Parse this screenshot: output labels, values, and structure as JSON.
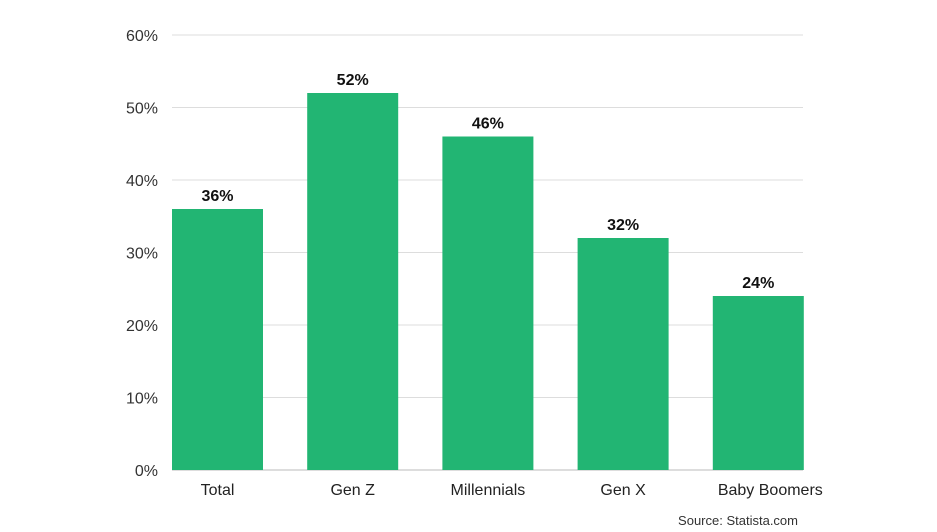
{
  "chart_data": {
    "type": "bar",
    "categories": [
      "Total",
      "Gen Z",
      "Millennials",
      "Gen X",
      "Baby Boomers"
    ],
    "values": [
      36,
      52,
      46,
      32,
      24
    ],
    "value_labels": [
      "36%",
      "52%",
      "46%",
      "32%",
      "24%"
    ],
    "title": "",
    "xlabel": "",
    "ylabel": "",
    "ylim": [
      0,
      60
    ],
    "yticks": [
      0,
      10,
      20,
      30,
      40,
      50,
      60
    ],
    "ytick_labels": [
      "0%",
      "10%",
      "20%",
      "30%",
      "40%",
      "50%",
      "60%"
    ],
    "grid": true,
    "legend": "none",
    "bar_color": "#22b573",
    "grid_color": "#dddddd"
  },
  "source": "Source: Statista.com"
}
